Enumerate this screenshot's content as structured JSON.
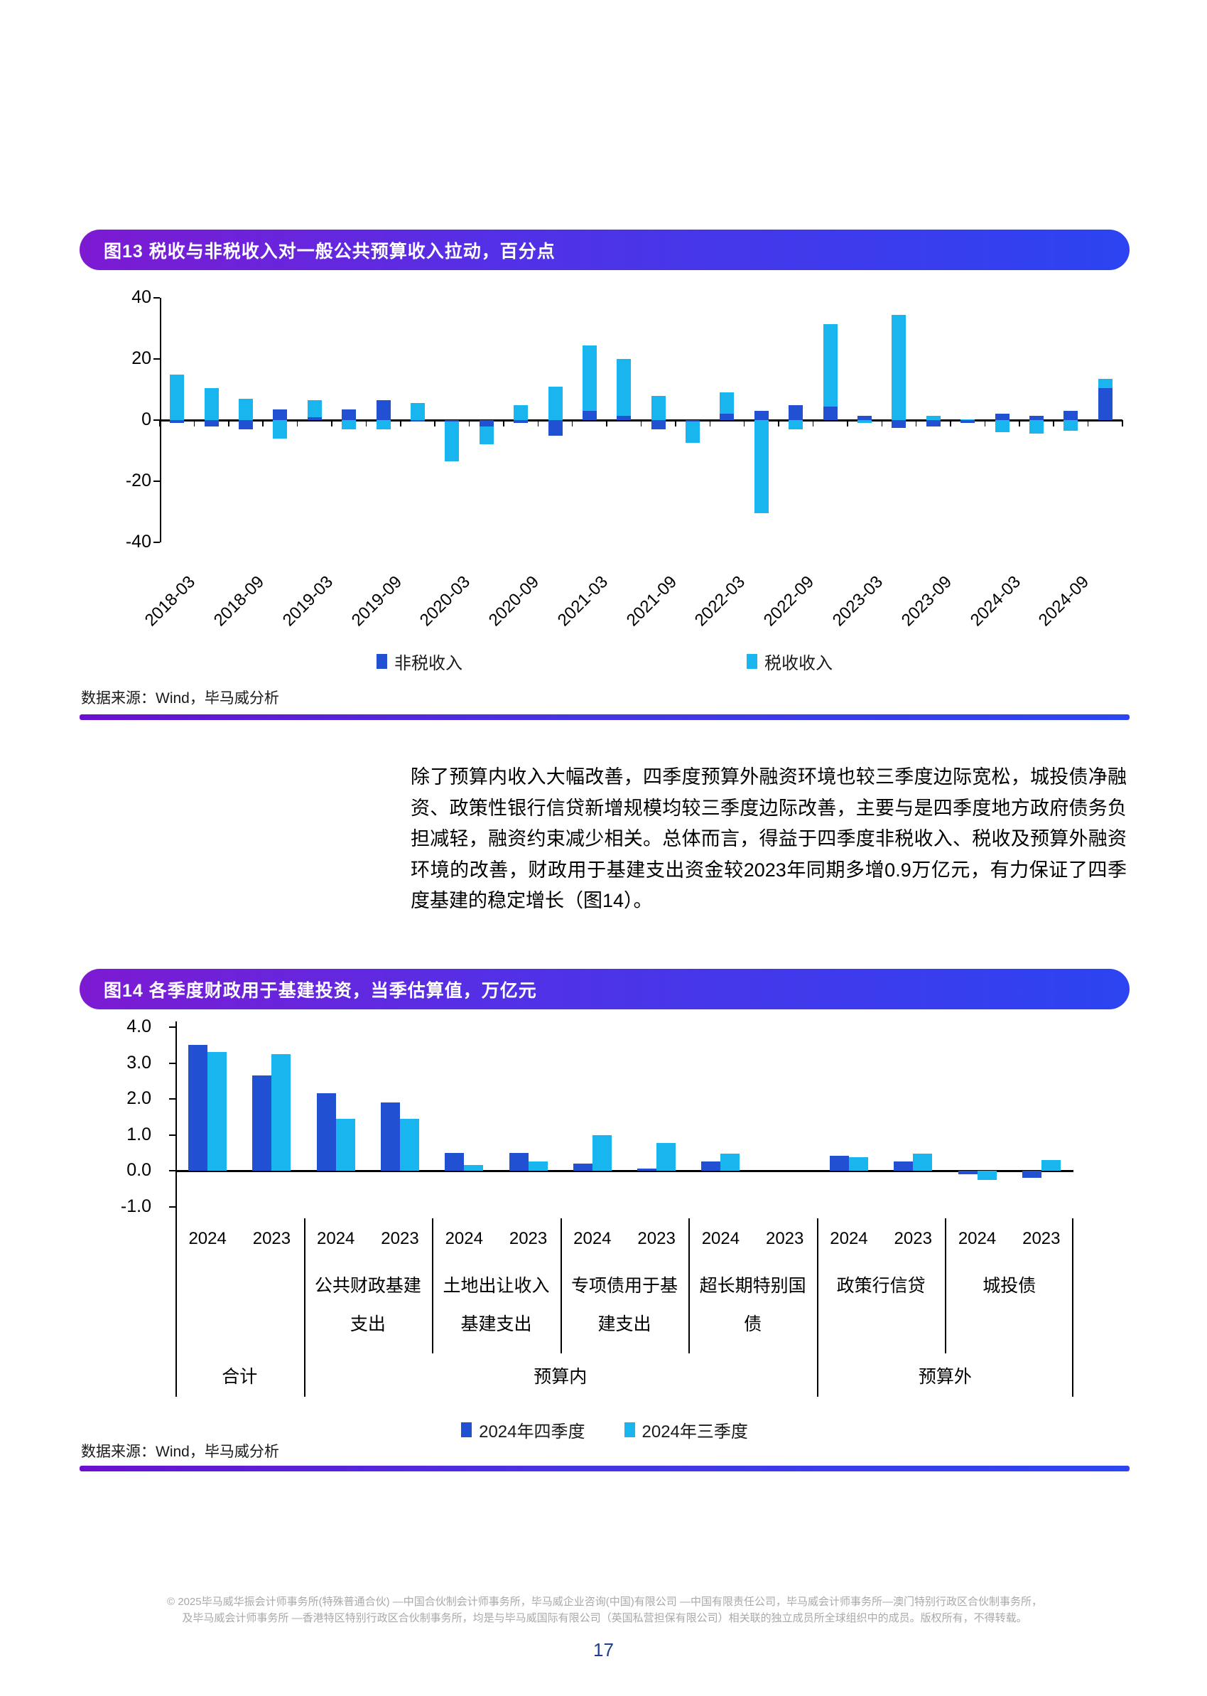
{
  "figure13": {
    "title": "图13 税收与非税收入对一般公共预算收入拉动，百分点",
    "source": "数据来源：Wind，毕马威分析",
    "legend": [
      "非税收入",
      "税收收入"
    ],
    "chart_data": {
      "type": "bar",
      "stacked": true,
      "x": [
        "2018-03",
        "2018-06",
        "2018-09",
        "2018-12",
        "2019-03",
        "2019-06",
        "2019-09",
        "2019-12",
        "2020-03",
        "2020-06",
        "2020-09",
        "2020-12",
        "2021-03",
        "2021-06",
        "2021-09",
        "2021-12",
        "2022-03",
        "2022-06",
        "2022-09",
        "2022-12",
        "2023-03",
        "2023-06",
        "2023-09",
        "2023-12",
        "2024-03",
        "2024-06",
        "2024-09",
        "2024-12"
      ],
      "x_tick_labels": [
        "2018-03",
        "2018-09",
        "2019-03",
        "2019-09",
        "2020-03",
        "2020-09",
        "2021-03",
        "2021-09",
        "2022-03",
        "2022-09",
        "2023-03",
        "2023-09",
        "2024-03",
        "2024-09"
      ],
      "series": [
        {
          "name": "非税收入",
          "color": "#2150d2",
          "values": [
            -1,
            -2,
            -3,
            3.5,
            1,
            3.5,
            6.5,
            -0.5,
            -0.5,
            -2,
            -1,
            -5,
            3,
            1.5,
            -3,
            -0.5,
            2,
            3,
            5,
            4.5,
            1.5,
            -2.5,
            -2,
            -1,
            2,
            1.5,
            3,
            10.5
          ]
        },
        {
          "name": "税收收入",
          "color": "#18b5ee",
          "values": [
            15,
            10.5,
            7,
            -6,
            5.5,
            -3,
            -3,
            5.5,
            -13,
            -6,
            5,
            11,
            21.5,
            18.5,
            8,
            -7,
            7,
            -30.5,
            -3,
            27,
            -1,
            34.5,
            1.5,
            0.3,
            -4,
            -4.5,
            -3.5,
            3
          ]
        }
      ],
      "ylim": [
        -40,
        40
      ],
      "yticks": [
        40,
        20,
        0,
        -20,
        -40
      ],
      "grid": "off",
      "legend_position": "bottom"
    }
  },
  "paragraph": "除了预算内收入大幅改善，四季度预算外融资环境也较三季度边际宽松，城投债净融资、政策性银行信贷新增规模均较三季度边际改善，主要与是四季度地方政府债务负担减轻，融资约束减少相关。总体而言，得益于四季度非税收入、税收及预算外融资环境的改善，财政用于基建支出资金较2023年同期多增0.9万亿元，有力保证了四季度基建的稳定增长（图14）。",
  "figure14": {
    "title": "图14 各季度财政用于基建投资，当季估算值，万亿元",
    "source": "数据来源：Wind，毕马威分析",
    "legend": [
      "2024年四季度",
      "2024年三季度"
    ],
    "groups": [
      {
        "name": "合计",
        "label_lines": []
      },
      {
        "name": "公共财政基建支出",
        "label_lines": [
          "公共财政基建",
          "支出"
        ]
      },
      {
        "name": "土地出让收入基建支出",
        "label_lines": [
          "土地出让收入",
          "基建支出"
        ]
      },
      {
        "name": "专项债用于基建支出",
        "label_lines": [
          "专项债用于基",
          "建支出"
        ]
      },
      {
        "name": "超长期特别国债",
        "label_lines": [
          "超长期特别国",
          "债"
        ]
      },
      {
        "name": "政策行信贷",
        "label_lines": [
          "政策行信贷"
        ]
      },
      {
        "name": "城投债",
        "label_lines": [
          "城投债"
        ]
      }
    ],
    "bands": [
      {
        "label": "合计",
        "span": 1
      },
      {
        "label": "预算内",
        "span": 4
      },
      {
        "label": "预算外",
        "span": 2
      }
    ],
    "chart_data": {
      "type": "bar",
      "grouped": true,
      "year_labels": [
        "2024",
        "2023"
      ],
      "categories": [
        "合计 2024",
        "合计 2023",
        "公共财政基建支出 2024",
        "公共财政基建支出 2023",
        "土地出让收入基建支出 2024",
        "土地出让收入基建支出 2023",
        "专项债用于基建支出 2024",
        "专项债用于基建支出 2023",
        "超长期特别国债 2024",
        "超长期特别国债 2023",
        "政策行信贷 2024",
        "政策行信贷 2023",
        "城投债 2024",
        "城投债 2023"
      ],
      "series": [
        {
          "name": "2024年四季度",
          "color": "#2150d2",
          "values": [
            3.5,
            2.65,
            2.15,
            1.9,
            0.5,
            0.5,
            0.2,
            0.05,
            0.25,
            null,
            0.42,
            0.25,
            -0.1,
            -0.2
          ]
        },
        {
          "name": "2024年三季度",
          "color": "#18b5ee",
          "values": [
            3.3,
            3.25,
            1.45,
            1.45,
            0.15,
            0.25,
            1.0,
            0.78,
            0.47,
            null,
            0.37,
            0.47,
            -0.25,
            0.3
          ]
        }
      ],
      "ylim": [
        -1.3,
        4.2
      ],
      "yticks": [
        "4.0",
        "3.0",
        "2.0",
        "1.0",
        "0.0",
        "-1.0"
      ],
      "grid": "off",
      "legend_position": "bottom"
    }
  },
  "footer": {
    "line1": "© 2025毕马威华振会计师事务所(特殊普通合伙) —中国合伙制会计师事务所，毕马威企业咨询(中国)有限公司 —中国有限责任公司，毕马威会计师事务所—澳门特别行政区合伙制事务所，",
    "line2": "及毕马威会计师事务所 —香港特区特别行政区合伙制事务所，均是与毕马威国际有限公司（英国私营担保有限公司）相关联的独立成员所全球组织中的成员。版权所有，不得转载。",
    "page_number": "17"
  },
  "colors": {
    "navy": "#2150d2",
    "cyan": "#18b5ee",
    "title_gradient_start": "#7d1ad2",
    "title_gradient_end": "#2c44f1",
    "page_number_blue": "#1e3f8f",
    "footer_gray": "#a9a9a9"
  }
}
